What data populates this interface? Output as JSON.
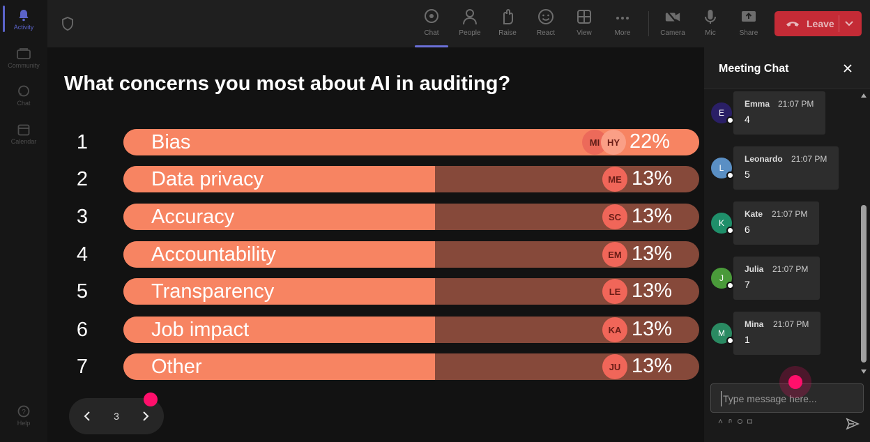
{
  "rail": {
    "items": [
      {
        "label": "Activity",
        "icon": "bell-icon"
      },
      {
        "label": "Community",
        "icon": "community-icon"
      },
      {
        "label": "Chat",
        "icon": "chat-icon"
      },
      {
        "label": "Calendar",
        "icon": "calendar-icon"
      },
      {
        "label": "Help",
        "icon": "help-icon"
      }
    ]
  },
  "toolbar": {
    "chat": "Chat",
    "people": "People",
    "raise": "Raise",
    "react": "React",
    "view": "View",
    "more": "More",
    "camera": "Camera",
    "mic": "Mic",
    "share": "Share",
    "leave": "Leave"
  },
  "poll": {
    "title": "What concerns you most about AI in auditing?",
    "options": [
      {
        "num": "1",
        "label": "Bias",
        "percent": "22%",
        "fill": 1.0,
        "avatars": [
          "MI",
          "HY"
        ]
      },
      {
        "num": "2",
        "label": "Data privacy",
        "percent": "13%",
        "fill": 0.541,
        "avatars": [
          "ME"
        ]
      },
      {
        "num": "3",
        "label": "Accuracy",
        "percent": "13%",
        "fill": 0.541,
        "avatars": [
          "SC"
        ]
      },
      {
        "num": "4",
        "label": "Accountability",
        "percent": "13%",
        "fill": 0.541,
        "avatars": [
          "EM"
        ]
      },
      {
        "num": "5",
        "label": "Transparency",
        "percent": "13%",
        "fill": 0.541,
        "avatars": [
          "LE"
        ]
      },
      {
        "num": "6",
        "label": "Job impact",
        "percent": "13%",
        "fill": 0.541,
        "avatars": [
          "KA"
        ]
      },
      {
        "num": "7",
        "label": "Other",
        "percent": "13%",
        "fill": 0.541,
        "avatars": [
          "JU"
        ]
      }
    ],
    "page": "3"
  },
  "chat": {
    "title": "Meeting Chat",
    "messages": [
      {
        "initial": "E",
        "name": "Emma",
        "time": "21:07 PM",
        "text": "4",
        "color": "#2a1f66"
      },
      {
        "initial": "L",
        "name": "Leonardo",
        "time": "21:07 PM",
        "text": "5",
        "color": "#5a8fc4"
      },
      {
        "initial": "K",
        "name": "Kate",
        "time": "21:07 PM",
        "text": "6",
        "color": "#1f8f6a"
      },
      {
        "initial": "J",
        "name": "Julia",
        "time": "21:07 PM",
        "text": "7",
        "color": "#4a9a3a"
      },
      {
        "initial": "M",
        "name": "Mina",
        "time": "21:07 PM",
        "text": "1",
        "color": "#2a8a62"
      }
    ],
    "placeholder": "Type message here..."
  },
  "colors": {
    "fill": "#f78462",
    "track": "#86493a",
    "leave": "#c42b36",
    "accent": "#5b63c9",
    "pointer": "#ff0f6b"
  }
}
